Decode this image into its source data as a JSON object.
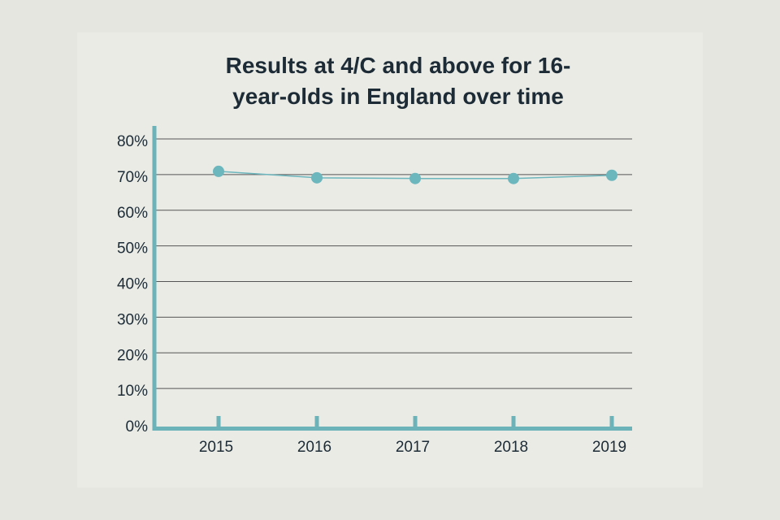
{
  "chart_data": {
    "type": "line",
    "title": "Results at 4/C and above for 16-year-olds in England over time",
    "categories": [
      "2015",
      "2016",
      "2017",
      "2018",
      "2019"
    ],
    "values": [
      70.9,
      69.1,
      68.9,
      68.9,
      69.8
    ],
    "color": "#6cb6bd",
    "ylim": [
      0,
      80
    ],
    "yticks": [
      {
        "value": 0,
        "label": "0%"
      },
      {
        "value": 10,
        "label": "10%"
      },
      {
        "value": 20,
        "label": "20%"
      },
      {
        "value": 30,
        "label": "30%"
      },
      {
        "value": 40,
        "label": "40%"
      },
      {
        "value": 50,
        "label": "50%"
      },
      {
        "value": 60,
        "label": "60%"
      },
      {
        "value": 70,
        "label": "70%"
      },
      {
        "value": 80,
        "label": "80%"
      }
    ],
    "grid": true
  }
}
